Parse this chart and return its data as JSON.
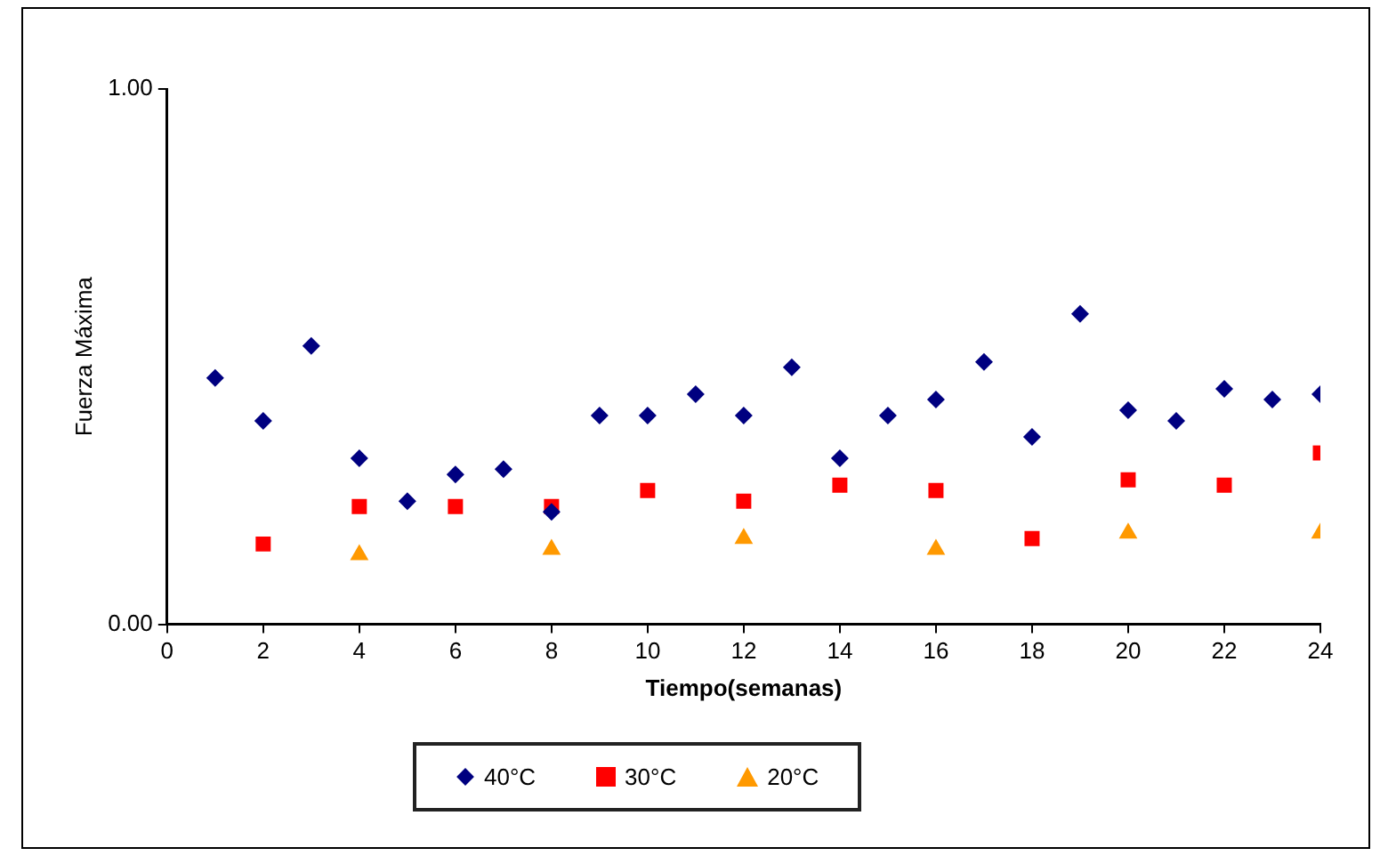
{
  "chart_data": {
    "type": "scatter",
    "xlabel": "Tiempo(semanas)",
    "ylabel": "Fuerza Máxima",
    "xlim": [
      0,
      24
    ],
    "xticks": [
      0,
      2,
      4,
      6,
      8,
      10,
      12,
      14,
      16,
      18,
      20,
      22,
      24
    ],
    "ylim": [
      0,
      1
    ],
    "yticks": [
      {
        "value": 0,
        "label": "0.00"
      },
      {
        "value": 1,
        "label": "1.00"
      }
    ],
    "grid": false,
    "legend": "bottom",
    "series": [
      {
        "name": "40°C",
        "color": "#000080",
        "marker": "diamond",
        "x": [
          1,
          2,
          3,
          4,
          5,
          6,
          7,
          8,
          9,
          10,
          11,
          12,
          13,
          14,
          15,
          16,
          17,
          18,
          19,
          20,
          21,
          22,
          23,
          24
        ],
        "values": [
          0.46,
          0.38,
          0.52,
          0.31,
          0.23,
          0.28,
          0.29,
          0.21,
          0.39,
          0.39,
          0.43,
          0.39,
          0.48,
          0.31,
          0.39,
          0.42,
          0.49,
          0.35,
          0.58,
          0.4,
          0.38,
          0.44,
          0.42,
          0.43
        ]
      },
      {
        "name": "30°C",
        "color": "#ff0000",
        "marker": "square",
        "x": [
          2,
          4,
          6,
          8,
          10,
          12,
          14,
          16,
          18,
          20,
          22,
          24
        ],
        "values": [
          0.15,
          0.22,
          0.22,
          0.22,
          0.25,
          0.23,
          0.26,
          0.25,
          0.16,
          0.27,
          0.26,
          0.32
        ]
      },
      {
        "name": "20°C",
        "color": "#ff9900",
        "marker": "triangle",
        "x": [
          4,
          8,
          12,
          16,
          20,
          24
        ],
        "values": [
          0.13,
          0.14,
          0.16,
          0.14,
          0.17,
          0.17
        ]
      }
    ]
  }
}
